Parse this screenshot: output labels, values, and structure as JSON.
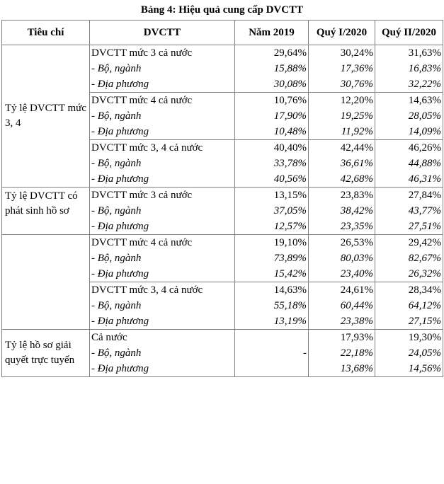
{
  "caption": "Bảng 4: Hiệu quả cung cấp DVCTT",
  "headers": [
    "Tiêu chí",
    "DVCTT",
    "Năm 2019",
    "Quý I/2020",
    "Quý II/2020"
  ],
  "criteria": {
    "c1": "Tỷ lệ DVCTT mức 3, 4",
    "c2": "Tỷ lệ DVCTT có phát sinh hồ sơ",
    "c3": "Tỷ lệ hồ sơ giải quyết trực tuyến"
  },
  "blocks": [
    {
      "lines": [
        "DVCTT mức 3 cả nước",
        "- Bộ, ngành",
        "- Địa phương"
      ],
      "y2019": [
        "29,64%",
        "15,88%",
        "30,08%"
      ],
      "q1": [
        "30,24%",
        "17,36%",
        "30,76%"
      ],
      "q2": [
        "31,63%",
        "16,83%",
        "32,22%"
      ]
    },
    {
      "lines": [
        "DVCTT mức 4 cả nước",
        "- Bộ, ngành",
        "- Địa phương"
      ],
      "y2019": [
        "10,76%",
        "17,90%",
        "10,48%"
      ],
      "q1": [
        "12,20%",
        "19,25%",
        "11,92%"
      ],
      "q2": [
        "14,63%",
        "28,05%",
        "14,09%"
      ]
    },
    {
      "lines": [
        "DVCTT mức 3, 4 cả nước",
        "- Bộ, ngành",
        "- Địa phương"
      ],
      "y2019": [
        "40,40%",
        "33,78%",
        "40,56%"
      ],
      "q1": [
        "42,44%",
        "36,61%",
        "42,68%"
      ],
      "q2": [
        "46,26%",
        "44,88%",
        "46,31%"
      ]
    },
    {
      "lines": [
        "DVCTT mức 3 cả nước",
        "- Bộ, ngành",
        "- Địa phương"
      ],
      "y2019": [
        "13,15%",
        "37,05%",
        "12,57%"
      ],
      "q1": [
        "23,83%",
        "38,42%",
        "23,35%"
      ],
      "q2": [
        "27,84%",
        "43,77%",
        "27,51%"
      ]
    },
    {
      "lines": [
        "DVCTT mức 4 cả nước",
        "- Bộ, ngành",
        "- Địa phương"
      ],
      "y2019": [
        "19,10%",
        "73,89%",
        "15,42%"
      ],
      "q1": [
        "26,53%",
        "80,03%",
        "23,40%"
      ],
      "q2": [
        "29,42%",
        "82,67%",
        "26,32%"
      ]
    },
    {
      "lines": [
        "DVCTT mức 3, 4 cả nước",
        "- Bộ, ngành",
        "- Địa phương"
      ],
      "y2019": [
        "14,63%",
        "55,18%",
        "13,19%"
      ],
      "q1": [
        "24,61%",
        "60,44%",
        "23,38%"
      ],
      "q2": [
        "28,34%",
        "64,12%",
        "27,15%"
      ]
    },
    {
      "lines": [
        "Cả nước",
        "- Bộ, ngành",
        "- Địa phương"
      ],
      "y2019_dash": "-",
      "q1": [
        "17,93%",
        "22,18%",
        "13,68%"
      ],
      "q2": [
        "19,30%",
        "24,05%",
        "14,56%"
      ]
    }
  ]
}
